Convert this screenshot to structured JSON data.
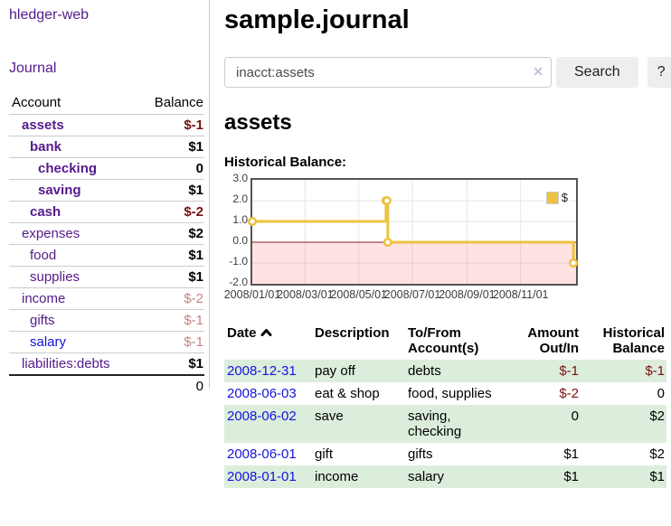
{
  "colors": {
    "accent_purple": "#551a8b",
    "link_blue": "#1414dd",
    "negative_strong": "#7a1010",
    "negative_soft": "#c58282",
    "row_stripe_green": "#dceddc",
    "button_gray": "#eeeeee"
  },
  "icons": {
    "clear_search": "x-mark",
    "sort_indicator": "chevron-up"
  },
  "sidebar": {
    "app_title": "hledger-web",
    "journal_link": "Journal",
    "accounts_table": {
      "account_header": "Account",
      "balance_header": "Balance",
      "rows": [
        {
          "name": "assets",
          "indent": 1,
          "balance": "$-1",
          "bold": true,
          "tone": "neg-strong"
        },
        {
          "name": "bank",
          "indent": 2,
          "balance": "$1",
          "bold": true,
          "tone": "pos"
        },
        {
          "name": "checking",
          "indent": 3,
          "balance": "0",
          "bold": true,
          "tone": "pos"
        },
        {
          "name": "saving",
          "indent": 3,
          "balance": "$1",
          "bold": true,
          "tone": "pos"
        },
        {
          "name": "cash",
          "indent": 2,
          "balance": "$-2",
          "bold": true,
          "tone": "neg-strong"
        },
        {
          "name": "expenses",
          "indent": 1,
          "balance": "$2",
          "bold": false,
          "tone": "pos"
        },
        {
          "name": "food",
          "indent": 2,
          "balance": "$1",
          "bold": false,
          "tone": "pos"
        },
        {
          "name": "supplies",
          "indent": 2,
          "balance": "$1",
          "bold": false,
          "tone": "pos"
        },
        {
          "name": "income",
          "indent": 1,
          "balance": "$-2",
          "bold": false,
          "tone": "neg-soft"
        },
        {
          "name": "gifts",
          "indent": 2,
          "balance": "$-1",
          "bold": false,
          "tone": "neg-soft"
        },
        {
          "name": "salary",
          "indent": 2,
          "balance": "$-1",
          "bold": false,
          "tone": "neg-soft",
          "link": "unvisited"
        },
        {
          "name": "liabilities:debts",
          "indent": 1,
          "balance": "$1",
          "bold": false,
          "tone": "pos"
        }
      ],
      "total": "0"
    }
  },
  "main": {
    "title": "sample.journal",
    "search": {
      "value": "inacct:assets",
      "clear_icon": "✕",
      "search_button": "Search",
      "help_button": "?"
    },
    "account_heading": "assets",
    "register_table": {
      "headers": [
        {
          "label": "Date",
          "align": "left",
          "sorted": true
        },
        {
          "label": "Description",
          "align": "left"
        },
        {
          "label": "To/From\nAccount(s)",
          "align": "left"
        },
        {
          "label": "Amount\nOut/In",
          "align": "right"
        },
        {
          "label": "Historical\nBalance",
          "align": "right"
        }
      ],
      "rows": [
        {
          "date": "2008-12-31",
          "description": "pay off",
          "accounts": "debts",
          "amount": "$-1",
          "balance": "$-1"
        },
        {
          "date": "2008-06-03",
          "description": "eat & shop",
          "accounts": "food, supplies",
          "amount": "$-2",
          "balance": "0"
        },
        {
          "date": "2008-06-02",
          "description": "save",
          "accounts": "saving, checking",
          "amount": "0",
          "balance": "$2"
        },
        {
          "date": "2008-06-01",
          "description": "gift",
          "accounts": "gifts",
          "amount": "$1",
          "balance": "$2"
        },
        {
          "date": "2008-01-01",
          "description": "income",
          "accounts": "salary",
          "amount": "$1",
          "balance": "$1"
        }
      ]
    }
  },
  "chart_data": {
    "type": "line",
    "style": "step",
    "title": "Historical Balance:",
    "series": [
      {
        "name": "$",
        "color": "#edc240",
        "x": [
          "2008-01-01",
          "2008-06-01",
          "2008-06-02",
          "2008-06-03",
          "2008-12-31"
        ],
        "values": [
          1,
          2,
          2,
          0,
          -1
        ]
      }
    ],
    "x_ticks": [
      "2008/01/01",
      "2008/03/01",
      "2008/05/01",
      "2008/07/01",
      "2008/09/01",
      "2008/11/01"
    ],
    "y_ticks": [
      "3.0",
      "2.0",
      "1.0",
      "0.0",
      "-1.0",
      "-2.0"
    ],
    "ylim": [
      -2,
      3
    ],
    "xlim": [
      "2008-01-01",
      "2009-01-03"
    ],
    "grid": true,
    "grid_color": "#e6e6e6",
    "border_color": "#545454",
    "line_color": "#edc240",
    "fill_below_zero": "rgba(255,0,0,0.11)",
    "zero_line_color": "#8b1a1a",
    "legend_position": "top-right"
  }
}
